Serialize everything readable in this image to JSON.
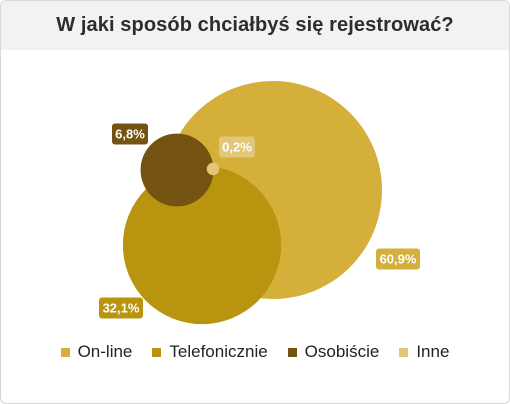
{
  "chart_data": {
    "type": "bubble",
    "title": "W jaki sposób chciałbyś się rejestrować?",
    "series": [
      {
        "name": "On-line",
        "value": 60.9,
        "label": "60,9%",
        "color": "#d4b03a",
        "text_color": "#ffffff"
      },
      {
        "name": "Telefonicznie",
        "value": 32.1,
        "label": "32,1%",
        "color": "#b9940f",
        "text_color": "#ffffff"
      },
      {
        "name": "Osobiście",
        "value": 6.8,
        "label": "6,8%",
        "color": "#745311",
        "text_color": "#ffffff"
      },
      {
        "name": "Inne",
        "value": 0.2,
        "label": "0,2%",
        "color": "#e2c67a",
        "text_color": "#ffffff"
      }
    ],
    "legend_position": "bottom"
  }
}
